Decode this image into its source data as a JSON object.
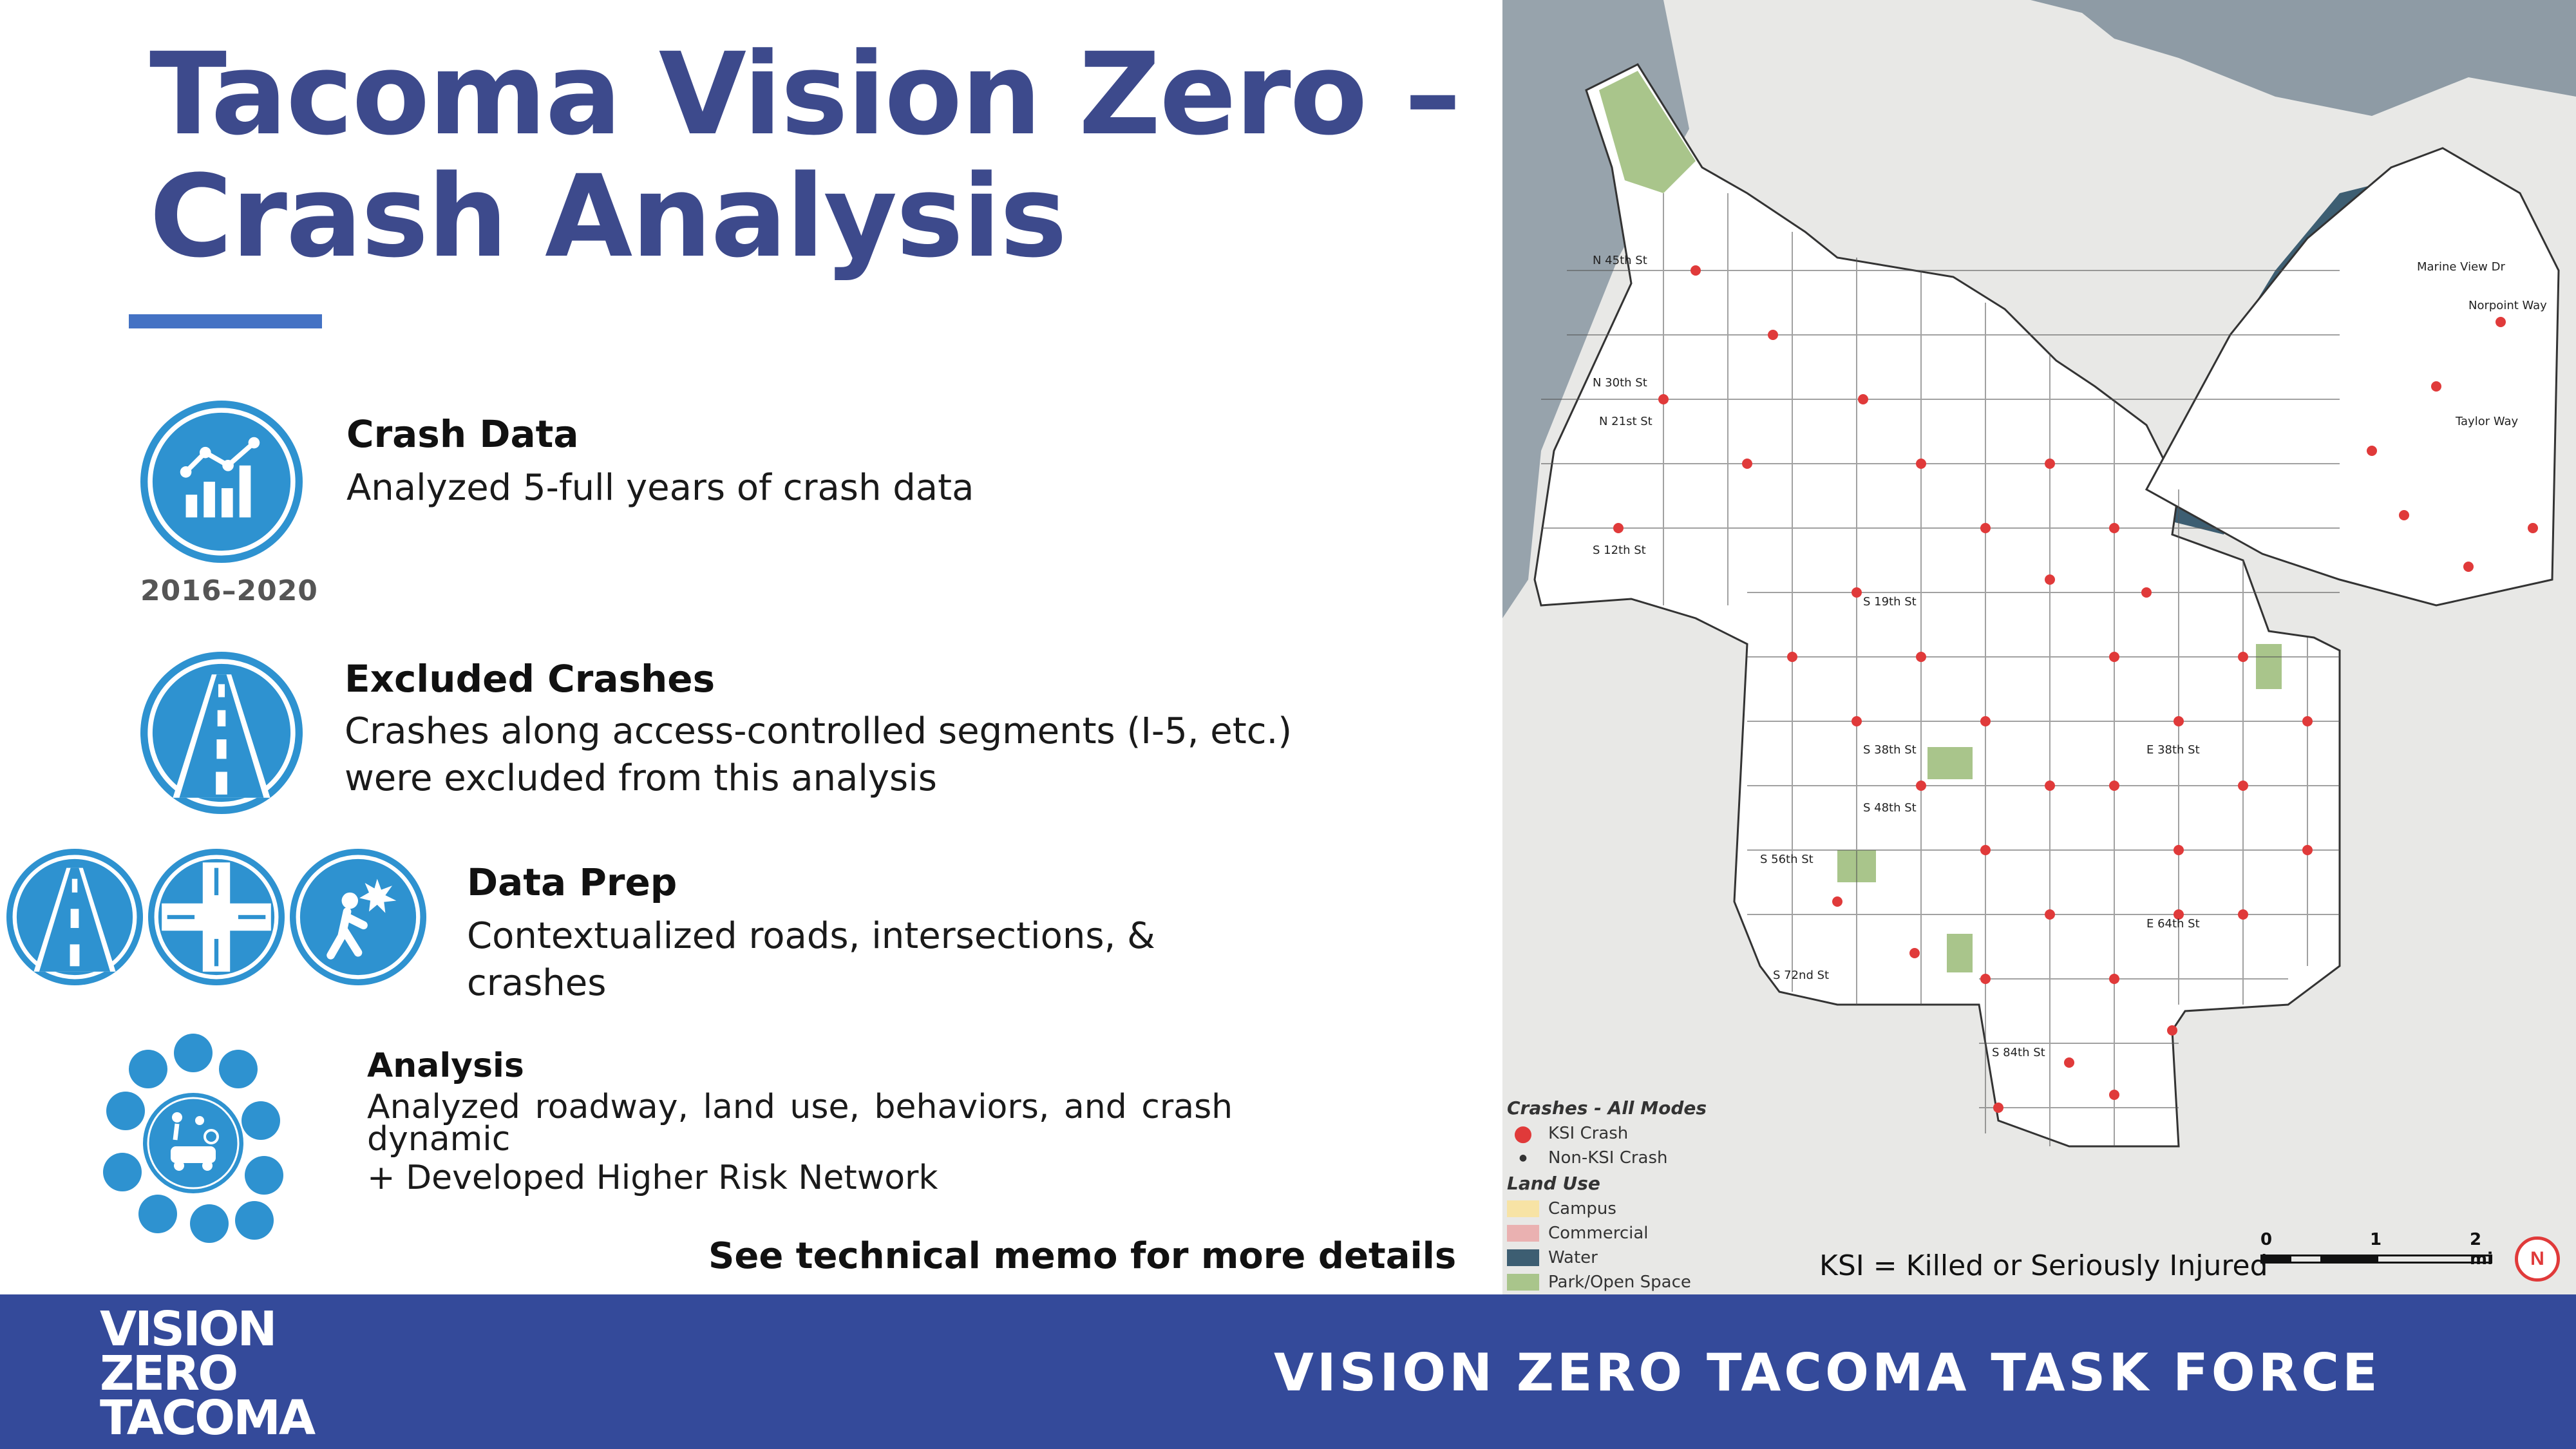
{
  "title": {
    "line1": "Tacoma Vision Zero –",
    "line2": "Crash Analysis"
  },
  "colors": {
    "title": "#3d4a8c",
    "accent": "#4472c4",
    "icon_blue": "#2e92d0",
    "footer": "#344a9a",
    "ksi_red": "#e03a3a"
  },
  "sections": {
    "crash_data": {
      "icon": "chart-growth-icon",
      "badge": "2016–2020",
      "heading": "Crash Data",
      "body": "Analyzed 5-full years of crash data"
    },
    "excluded": {
      "icon": "highway-icon",
      "heading": "Excluded Crashes",
      "line1": "Crashes along access-controlled segments (I-5, etc.)",
      "line2": "were excluded from this analysis"
    },
    "data_prep": {
      "icons": [
        "road-icon",
        "intersection-icon",
        "pedestrian-crash-icon"
      ],
      "heading": "Data Prep",
      "line1": "Contextualized roads, intersections, &",
      "line2": "crashes"
    },
    "analysis": {
      "icon": "analysis-network-icon",
      "heading": "Analysis",
      "line1": "Analyzed  roadway,  land use,  behaviors,  and crash",
      "line2": "dynamic",
      "line3": "+ Developed Higher Risk Network"
    }
  },
  "memo": "See technical memo for more details",
  "map": {
    "legend": {
      "crashes_title": "Crashes - All Modes",
      "ksi": "KSI Crash",
      "non_ksi": "Non-KSI Crash",
      "landuse_title": "Land Use",
      "campus": "Campus",
      "commercial": "Commercial",
      "water": "Water",
      "park": "Park/Open Space"
    },
    "note": "KSI = Killed or Seriously Injured",
    "scale": {
      "zero": "0",
      "one": "1",
      "two": "2 mi"
    },
    "north": "N",
    "streets": [
      "N 45th St",
      "N 30th St",
      "N 21st St",
      "S 12th St",
      "S 19th St",
      "S 38th St",
      "S 48th St",
      "S 56th St",
      "S 72nd St",
      "S 84th St",
      "E 38th St",
      "E 64th St",
      "Taylor Way",
      "Marine View Dr",
      "Norpoint Way"
    ]
  },
  "footer": {
    "logo_line1": "VISION",
    "logo_line2": "ZERO",
    "logo_line3": "TACOMA",
    "task_force": "VISION ZERO TACOMA TASK FORCE"
  }
}
